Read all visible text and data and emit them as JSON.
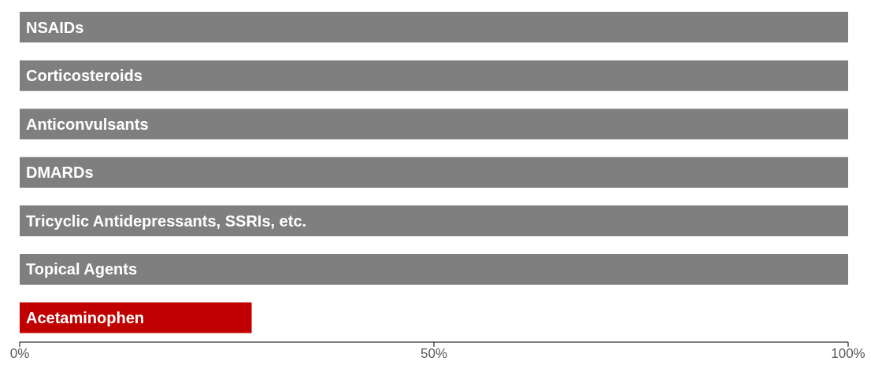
{
  "chart_data": {
    "type": "bar",
    "orientation": "horizontal",
    "categories": [
      "NSAIDs",
      "Corticosteroids",
      "Anticonvulsants",
      "DMARDs",
      "Tricyclic Antidepressants, SSRIs, etc.",
      "Topical Agents",
      "Acetaminophen"
    ],
    "values": [
      100,
      100,
      100,
      100,
      100,
      100,
      28
    ],
    "colors": [
      "#7f7f7f",
      "#7f7f7f",
      "#7f7f7f",
      "#7f7f7f",
      "#7f7f7f",
      "#7f7f7f",
      "#c00000"
    ],
    "xlim": [
      0,
      100
    ],
    "xticks": [
      {
        "value": 0,
        "label": "0%"
      },
      {
        "value": 50,
        "label": "50%"
      },
      {
        "value": 100,
        "label": "100%"
      }
    ],
    "grid": false
  }
}
